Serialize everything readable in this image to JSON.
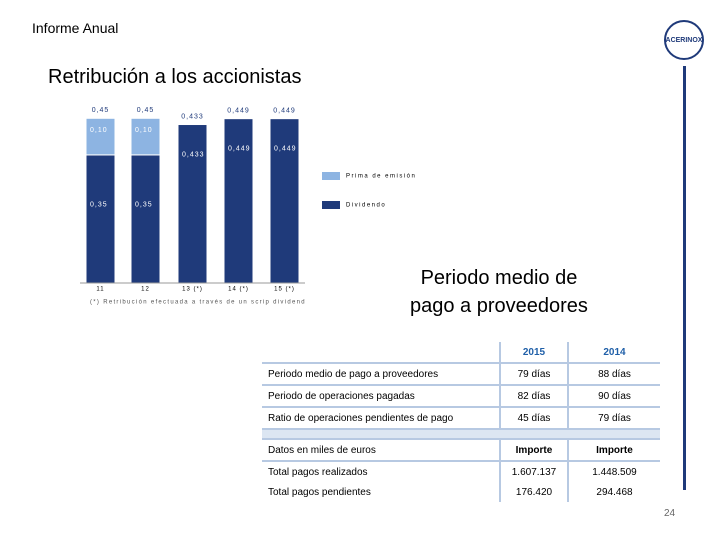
{
  "header": {
    "title": "Informe Anual",
    "logo": "ACERINOX"
  },
  "section_1": {
    "title": "Retribución a los accionistas"
  },
  "chart_data": {
    "type": "stacked-bar",
    "categories": [
      "11",
      "12",
      "13 (*)",
      "14 (*)",
      "15 (*)"
    ],
    "series": [
      {
        "name": "Dividendo",
        "color": "#1f3a7a",
        "values": [
          0.35,
          0.35,
          0.433,
          0.449,
          0.449
        ],
        "value_labels": [
          "0,35",
          "0,35",
          "0,433",
          "0,449",
          "0,449"
        ]
      },
      {
        "name": "Prima de emisión",
        "color": "#8db4e2",
        "values": [
          0.1,
          0.1,
          0,
          0,
          0
        ],
        "value_labels": [
          "0,10",
          "0,10",
          null,
          null,
          null
        ]
      }
    ],
    "totals": {
      "values": [
        0.45,
        0.45,
        0.433,
        0.449,
        0.449
      ],
      "value_labels": [
        "0,45",
        "0,45",
        "0,433",
        "0,449",
        "0,449"
      ]
    },
    "ylim": [
      0,
      0.5
    ],
    "footnote": "(*) Retribución efectuada a través de un scrip dividend"
  },
  "section_2": {
    "title_lines": [
      "Periodo medio de",
      "pago a proveedores"
    ]
  },
  "table": {
    "header": [
      "",
      "2015",
      "2014"
    ],
    "rows": [
      [
        "Periodo medio de pago a proveedores",
        "79 días",
        "88 días"
      ],
      [
        "Periodo de operaciones pagadas",
        "82 días",
        "90 días"
      ],
      [
        "Ratio de operaciones pendientes de pago",
        "45 días",
        "79 días"
      ]
    ],
    "header_2": [
      "Datos en miles de euros",
      "Importe",
      "Importe"
    ],
    "rows_2": [
      [
        "Total pagos realizados",
        "1.607.137",
        "1.448.509"
      ],
      [
        "Total pagos pendientes",
        "176.420",
        "294.468"
      ]
    ]
  },
  "page_number": "24"
}
